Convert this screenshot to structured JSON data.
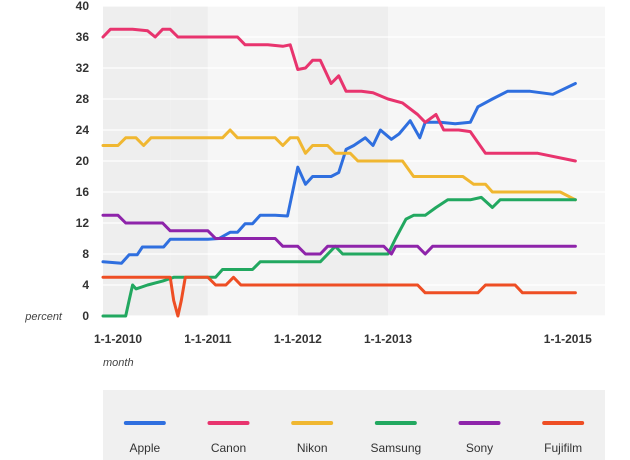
{
  "chart_data": {
    "type": "line",
    "ylabel": "percent",
    "xlabel": "month",
    "ylim": [
      0,
      40
    ],
    "yticks": [
      0,
      4,
      8,
      12,
      16,
      20,
      24,
      28,
      32,
      36,
      40
    ],
    "xlim": [
      "2009-11-01",
      "2015-06-01"
    ],
    "xticks": [
      "1-1-2010",
      "1-1-2011",
      "1-1-2012",
      "1-1-2013",
      "1-1-2015"
    ],
    "grid": true,
    "legend": "bottom",
    "series": [
      {
        "name": "Apple",
        "color": "#2f6fdf",
        "points": [
          [
            "2009-11-01",
            7.0
          ],
          [
            "2010-01-15",
            6.8
          ],
          [
            "2010-02-15",
            7.9
          ],
          [
            "2010-03-20",
            7.9
          ],
          [
            "2010-04-10",
            8.9
          ],
          [
            "2010-06-01",
            8.9
          ],
          [
            "2010-07-05",
            8.9
          ],
          [
            "2010-08-01",
            9.9
          ],
          [
            "2010-10-01",
            9.9
          ],
          [
            "2011-01-01",
            9.9
          ],
          [
            "2011-02-15",
            10.0
          ],
          [
            "2011-04-01",
            10.8
          ],
          [
            "2011-05-01",
            10.8
          ],
          [
            "2011-06-01",
            11.9
          ],
          [
            "2011-07-01",
            11.9
          ],
          [
            "2011-08-01",
            13.0
          ],
          [
            "2011-10-01",
            13.0
          ],
          [
            "2011-11-20",
            12.9
          ],
          [
            "2012-01-01",
            19.2
          ],
          [
            "2012-02-01",
            17.0
          ],
          [
            "2012-03-01",
            18.0
          ],
          [
            "2012-04-01",
            18.0
          ],
          [
            "2012-05-15",
            18.0
          ],
          [
            "2012-06-15",
            18.5
          ],
          [
            "2012-07-15",
            21.5
          ],
          [
            "2012-08-15",
            22.0
          ],
          [
            "2012-10-01",
            23.0
          ],
          [
            "2012-11-01",
            22.0
          ],
          [
            "2012-12-01",
            24.0
          ],
          [
            "2013-01-15",
            22.8
          ],
          [
            "2013-02-15",
            23.5
          ],
          [
            "2013-04-01",
            25.2
          ],
          [
            "2013-05-10",
            23.0
          ],
          [
            "2013-06-01",
            25.0
          ],
          [
            "2013-08-01",
            25.0
          ],
          [
            "2013-10-01",
            24.8
          ],
          [
            "2013-12-01",
            25.0
          ],
          [
            "2014-01-01",
            27.0
          ],
          [
            "2014-03-01",
            28.0
          ],
          [
            "2014-05-01",
            29.0
          ],
          [
            "2014-08-01",
            29.0
          ],
          [
            "2014-11-01",
            28.6
          ],
          [
            "2015-02-01",
            30.0
          ]
        ]
      },
      {
        "name": "Canon",
        "color": "#e8346e",
        "points": [
          [
            "2009-11-01",
            36.0
          ],
          [
            "2009-12-01",
            37.0
          ],
          [
            "2010-03-01",
            37.0
          ],
          [
            "2010-05-01",
            36.8
          ],
          [
            "2010-06-01",
            36.0
          ],
          [
            "2010-07-01",
            37.0
          ],
          [
            "2010-08-01",
            37.0
          ],
          [
            "2010-09-01",
            36.0
          ],
          [
            "2011-03-01",
            36.0
          ],
          [
            "2011-05-01",
            36.0
          ],
          [
            "2011-06-01",
            35.0
          ],
          [
            "2011-09-01",
            35.0
          ],
          [
            "2011-11-01",
            34.8
          ],
          [
            "2011-12-01",
            35.0
          ],
          [
            "2012-01-01",
            31.8
          ],
          [
            "2012-02-01",
            32.0
          ],
          [
            "2012-03-01",
            33.0
          ],
          [
            "2012-04-01",
            33.0
          ],
          [
            "2012-05-15",
            30.0
          ],
          [
            "2012-06-15",
            31.0
          ],
          [
            "2012-07-15",
            29.0
          ],
          [
            "2012-09-15",
            29.0
          ],
          [
            "2012-11-01",
            28.8
          ],
          [
            "2013-01-01",
            28.0
          ],
          [
            "2013-03-01",
            27.5
          ],
          [
            "2013-05-01",
            26.0
          ],
          [
            "2013-06-01",
            25.0
          ],
          [
            "2013-07-15",
            26.0
          ],
          [
            "2013-08-15",
            24.0
          ],
          [
            "2013-10-15",
            24.0
          ],
          [
            "2013-12-01",
            23.8
          ],
          [
            "2014-02-01",
            21.0
          ],
          [
            "2014-06-01",
            21.0
          ],
          [
            "2014-09-01",
            21.0
          ],
          [
            "2015-02-01",
            20.0
          ]
        ]
      },
      {
        "name": "Nikon",
        "color": "#f0b731",
        "points": [
          [
            "2009-11-01",
            22.0
          ],
          [
            "2010-01-01",
            22.0
          ],
          [
            "2010-02-01",
            23.0
          ],
          [
            "2010-03-15",
            23.0
          ],
          [
            "2010-04-15",
            22.0
          ],
          [
            "2010-05-15",
            23.0
          ],
          [
            "2010-07-01",
            23.0
          ],
          [
            "2011-01-01",
            23.0
          ],
          [
            "2011-03-01",
            23.0
          ],
          [
            "2011-04-01",
            24.0
          ],
          [
            "2011-05-01",
            23.0
          ],
          [
            "2011-08-01",
            23.0
          ],
          [
            "2011-10-01",
            23.0
          ],
          [
            "2011-11-01",
            22.0
          ],
          [
            "2011-12-01",
            23.0
          ],
          [
            "2012-01-01",
            23.0
          ],
          [
            "2012-02-01",
            21.0
          ],
          [
            "2012-03-01",
            22.0
          ],
          [
            "2012-05-01",
            22.0
          ],
          [
            "2012-06-01",
            21.0
          ],
          [
            "2012-08-01",
            21.0
          ],
          [
            "2012-09-01",
            20.0
          ],
          [
            "2013-01-01",
            20.0
          ],
          [
            "2013-03-01",
            20.0
          ],
          [
            "2013-04-15",
            18.0
          ],
          [
            "2013-08-01",
            18.0
          ],
          [
            "2013-11-01",
            18.0
          ],
          [
            "2013-12-15",
            17.0
          ],
          [
            "2014-02-01",
            17.0
          ],
          [
            "2014-03-01",
            16.0
          ],
          [
            "2014-07-01",
            16.0
          ],
          [
            "2014-10-15",
            16.0
          ],
          [
            "2014-12-01",
            16.0
          ],
          [
            "2015-02-01",
            15.0
          ]
        ]
      },
      {
        "name": "Samsung",
        "color": "#22a860",
        "points": [
          [
            "2009-11-01",
            0.0
          ],
          [
            "2010-02-01",
            0.0
          ],
          [
            "2010-02-15",
            2.0
          ],
          [
            "2010-03-01",
            4.0
          ],
          [
            "2010-03-15",
            3.5
          ],
          [
            "2010-05-01",
            4.0
          ],
          [
            "2010-07-01",
            4.5
          ],
          [
            "2010-08-15",
            5.0
          ],
          [
            "2011-01-01",
            5.0
          ],
          [
            "2011-02-01",
            5.0
          ],
          [
            "2011-03-01",
            6.0
          ],
          [
            "2011-06-01",
            6.0
          ],
          [
            "2011-07-01",
            6.0
          ],
          [
            "2011-08-01",
            7.0
          ],
          [
            "2012-01-01",
            7.0
          ],
          [
            "2012-04-01",
            7.0
          ],
          [
            "2012-06-01",
            9.0
          ],
          [
            "2012-07-01",
            8.0
          ],
          [
            "2012-11-01",
            8.0
          ],
          [
            "2013-01-01",
            8.0
          ],
          [
            "2013-02-01",
            10.0
          ],
          [
            "2013-03-15",
            12.5
          ],
          [
            "2013-04-15",
            13.0
          ],
          [
            "2013-06-01",
            13.0
          ],
          [
            "2013-07-15",
            14.0
          ],
          [
            "2013-09-01",
            15.0
          ],
          [
            "2013-12-01",
            15.0
          ],
          [
            "2014-01-15",
            15.3
          ],
          [
            "2014-03-01",
            14.0
          ],
          [
            "2014-04-01",
            15.0
          ],
          [
            "2014-08-01",
            15.0
          ],
          [
            "2015-02-01",
            15.0
          ]
        ]
      },
      {
        "name": "Sony",
        "color": "#8e24aa",
        "points": [
          [
            "2009-11-01",
            13.0
          ],
          [
            "2010-01-01",
            13.0
          ],
          [
            "2010-02-01",
            12.0
          ],
          [
            "2010-06-01",
            12.0
          ],
          [
            "2010-07-01",
            12.0
          ],
          [
            "2010-08-01",
            11.0
          ],
          [
            "2011-01-01",
            11.0
          ],
          [
            "2011-02-01",
            10.0
          ],
          [
            "2011-10-01",
            10.0
          ],
          [
            "2011-11-01",
            9.0
          ],
          [
            "2012-01-01",
            9.0
          ],
          [
            "2012-02-01",
            8.0
          ],
          [
            "2012-04-01",
            8.0
          ],
          [
            "2012-05-01",
            9.0
          ],
          [
            "2012-11-01",
            9.0
          ],
          [
            "2012-12-15",
            9.0
          ],
          [
            "2013-01-15",
            8.0
          ],
          [
            "2013-02-01",
            9.0
          ],
          [
            "2013-05-01",
            9.0
          ],
          [
            "2013-06-01",
            8.0
          ],
          [
            "2013-07-01",
            9.0
          ],
          [
            "2014-01-01",
            9.0
          ],
          [
            "2015-02-01",
            9.0
          ]
        ]
      },
      {
        "name": "Fujifilm",
        "color": "#ee4e24",
        "points": [
          [
            "2009-11-01",
            5.0
          ],
          [
            "2010-06-01",
            5.0
          ],
          [
            "2010-08-01",
            5.0
          ],
          [
            "2010-08-15",
            2.0
          ],
          [
            "2010-09-01",
            0.0
          ],
          [
            "2010-09-15",
            2.0
          ],
          [
            "2010-10-01",
            5.0
          ],
          [
            "2011-01-01",
            5.0
          ],
          [
            "2011-02-01",
            4.0
          ],
          [
            "2011-03-15",
            4.0
          ],
          [
            "2011-04-15",
            5.0
          ],
          [
            "2011-05-15",
            4.0
          ],
          [
            "2012-06-01",
            4.0
          ],
          [
            "2013-01-01",
            4.0
          ],
          [
            "2013-05-01",
            4.0
          ],
          [
            "2013-06-01",
            3.0
          ],
          [
            "2014-01-01",
            3.0
          ],
          [
            "2014-02-01",
            4.0
          ],
          [
            "2014-06-01",
            4.0
          ],
          [
            "2014-07-01",
            3.0
          ],
          [
            "2015-02-01",
            3.0
          ]
        ]
      }
    ]
  }
}
